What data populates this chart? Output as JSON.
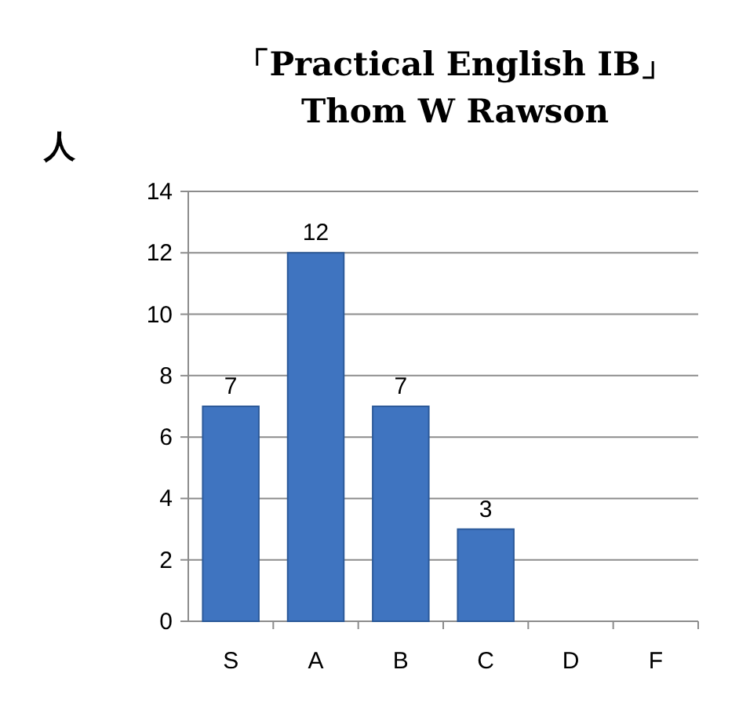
{
  "chart_data": {
    "type": "bar",
    "title": "「Practical English ⅠB」\nThom W Rawson",
    "ylabel": "人",
    "categories": [
      "S",
      "A",
      "B",
      "C",
      "D",
      "F"
    ],
    "values": [
      7,
      12,
      7,
      3,
      0,
      0
    ],
    "color": "#3f74c0",
    "value_labels": [
      "7",
      "12",
      "7",
      "3",
      null,
      null
    ],
    "ylim": [
      0,
      14
    ],
    "yticks": [
      0,
      2,
      4,
      6,
      8,
      10,
      12,
      14
    ],
    "grid": "y"
  }
}
